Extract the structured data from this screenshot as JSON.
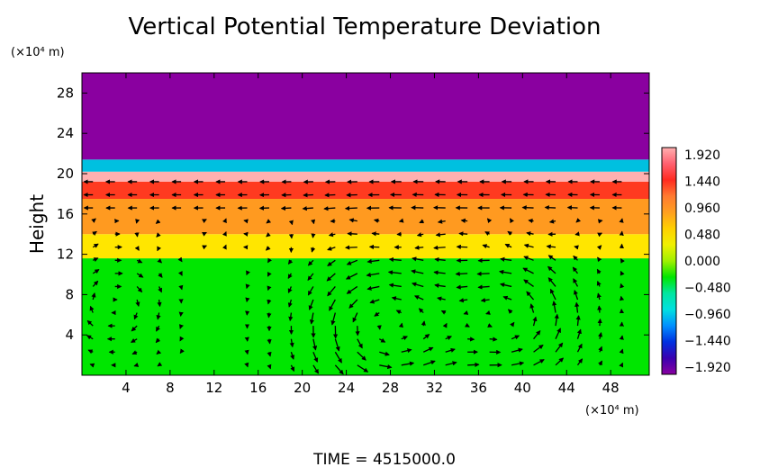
{
  "chart_data": {
    "type": "heatmap",
    "title": "Vertical Potential Temperature Deviation",
    "ylabel": "Height",
    "y_unit": "(×10⁴ m)",
    "x_unit": "(×10⁴ m)",
    "xlim": [
      0,
      51.5
    ],
    "ylim": [
      0,
      30
    ],
    "x_ticks": [
      4,
      8,
      12,
      16,
      20,
      24,
      28,
      32,
      36,
      40,
      44,
      48
    ],
    "y_ticks": [
      4,
      8,
      12,
      16,
      20,
      24,
      28
    ],
    "x_tick_labels": [
      "4",
      "8",
      "12",
      "16",
      "20",
      "24",
      "28",
      "32",
      "36",
      "40",
      "44",
      "48"
    ],
    "y_tick_labels": [
      "4",
      "8",
      "12",
      "16",
      "20",
      "24",
      "28"
    ],
    "colorbar": {
      "labels": [
        "1.920",
        "1.440",
        "0.960",
        "0.480",
        "0.000",
        "−0.480",
        "−0.960",
        "−1.440",
        "−1.920"
      ],
      "min": -1.92,
      "max": 1.92,
      "colors": [
        "#8a00a0",
        "#3a00b0",
        "#0030e0",
        "#0090ff",
        "#00e0e0",
        "#00e6a0",
        "#00e600",
        "#a0f000",
        "#f0f000",
        "#ffd000",
        "#ffa020",
        "#ff7a30",
        "#ff2a20",
        "#ff6070",
        "#ffb0b0"
      ]
    },
    "layers": [
      {
        "y0": 0,
        "y1": 11.6,
        "value": 0.0,
        "color": "#00e600"
      },
      {
        "y0": 11.6,
        "y1": 14.0,
        "value": 0.96,
        "color": "#ffe600"
      },
      {
        "y0": 14.0,
        "y1": 17.5,
        "value": 1.2,
        "color": "#ff9a20"
      },
      {
        "y0": 17.5,
        "y1": 19.2,
        "value": 1.6,
        "color": "#ff3a20"
      },
      {
        "y0": 19.2,
        "y1": 20.2,
        "value": 1.92,
        "color": "#ffb0b0"
      },
      {
        "y0": 20.2,
        "y1": 21.4,
        "value": -1.0,
        "color": "#00c0e0"
      },
      {
        "y0": 21.4,
        "y1": 30,
        "value": -1.92,
        "color": "#8a00a0"
      }
    ],
    "vortices": [
      {
        "cx": 27.5,
        "cy": 5,
        "r": 5,
        "dir": 1
      },
      {
        "cx": 39,
        "cy": 5.5,
        "r": 4.5,
        "dir": 1
      },
      {
        "cx": 3,
        "cy": 7,
        "r": 3,
        "dir": -1
      }
    ],
    "time_label": "TIME = 4515000.0"
  }
}
